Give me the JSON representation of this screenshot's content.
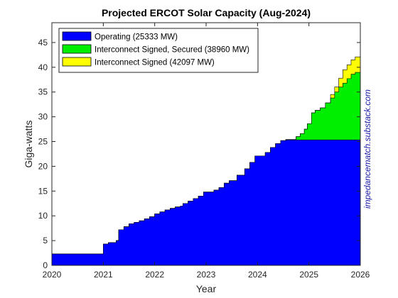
{
  "chart_data": {
    "type": "area",
    "title": "Projected ERCOT Solar Capacity (Aug-2024)",
    "xlabel": "Year",
    "ylabel": "Giga-watts",
    "xlim": [
      2020,
      2026
    ],
    "ylim": [
      0,
      49
    ],
    "xticks": [
      2020,
      2021,
      2022,
      2023,
      2024,
      2025,
      2026
    ],
    "yticks": [
      0,
      5,
      10,
      15,
      20,
      25,
      30,
      35,
      40,
      45
    ],
    "step": true,
    "legend_position": "top-left",
    "watermark": "impedancematch.substack.com",
    "series": [
      {
        "name": "Operating (25333 MW)",
        "color": "#0000ff",
        "values": [
          [
            2020.0,
            2.3
          ],
          [
            2021.0,
            4.3
          ],
          [
            2021.1,
            4.6
          ],
          [
            2021.25,
            5.0
          ],
          [
            2021.3,
            7.2
          ],
          [
            2021.4,
            7.8
          ],
          [
            2021.5,
            8.4
          ],
          [
            2021.6,
            8.7
          ],
          [
            2021.7,
            9.0
          ],
          [
            2021.8,
            9.4
          ],
          [
            2021.9,
            9.8
          ],
          [
            2022.0,
            10.4
          ],
          [
            2022.1,
            10.8
          ],
          [
            2022.2,
            11.2
          ],
          [
            2022.3,
            11.5
          ],
          [
            2022.4,
            11.8
          ],
          [
            2022.5,
            12.0
          ],
          [
            2022.55,
            12.5
          ],
          [
            2022.65,
            13.0
          ],
          [
            2022.75,
            13.5
          ],
          [
            2022.85,
            14.0
          ],
          [
            2022.95,
            14.8
          ],
          [
            2023.15,
            15.2
          ],
          [
            2023.25,
            15.7
          ],
          [
            2023.35,
            16.6
          ],
          [
            2023.45,
            17.1
          ],
          [
            2023.6,
            18.2
          ],
          [
            2023.75,
            19.5
          ],
          [
            2023.85,
            20.8
          ],
          [
            2023.95,
            22.1
          ],
          [
            2024.15,
            22.8
          ],
          [
            2024.25,
            23.8
          ],
          [
            2024.35,
            24.6
          ],
          [
            2024.45,
            25.2
          ],
          [
            2024.55,
            25.333
          ],
          [
            2026.0,
            25.333
          ]
        ]
      },
      {
        "name": "Interconnect Signed, Secured (38960 MW)",
        "color": "#00ee00",
        "values": [
          [
            2020.0,
            2.3
          ],
          [
            2021.0,
            4.3
          ],
          [
            2021.1,
            4.6
          ],
          [
            2021.25,
            5.0
          ],
          [
            2021.3,
            7.2
          ],
          [
            2021.4,
            7.8
          ],
          [
            2021.5,
            8.4
          ],
          [
            2021.6,
            8.7
          ],
          [
            2021.7,
            9.0
          ],
          [
            2021.8,
            9.4
          ],
          [
            2021.9,
            9.8
          ],
          [
            2022.0,
            10.4
          ],
          [
            2022.1,
            10.8
          ],
          [
            2022.2,
            11.2
          ],
          [
            2022.3,
            11.5
          ],
          [
            2022.4,
            11.8
          ],
          [
            2022.5,
            12.0
          ],
          [
            2022.55,
            12.5
          ],
          [
            2022.65,
            13.0
          ],
          [
            2022.75,
            13.5
          ],
          [
            2022.85,
            14.0
          ],
          [
            2022.95,
            14.8
          ],
          [
            2023.15,
            15.2
          ],
          [
            2023.25,
            15.7
          ],
          [
            2023.35,
            16.6
          ],
          [
            2023.45,
            17.1
          ],
          [
            2023.6,
            18.2
          ],
          [
            2023.75,
            19.5
          ],
          [
            2023.85,
            20.8
          ],
          [
            2023.95,
            22.1
          ],
          [
            2024.15,
            22.8
          ],
          [
            2024.25,
            23.8
          ],
          [
            2024.35,
            24.6
          ],
          [
            2024.45,
            25.2
          ],
          [
            2024.55,
            25.4
          ],
          [
            2024.75,
            26.0
          ],
          [
            2024.83,
            26.6
          ],
          [
            2024.91,
            27.5
          ],
          [
            2024.97,
            28.6
          ],
          [
            2025.05,
            30.8
          ],
          [
            2025.12,
            31.3
          ],
          [
            2025.22,
            31.8
          ],
          [
            2025.32,
            32.8
          ],
          [
            2025.42,
            33.8
          ],
          [
            2025.5,
            35.0
          ],
          [
            2025.58,
            36.0
          ],
          [
            2025.66,
            36.8
          ],
          [
            2025.74,
            37.7
          ],
          [
            2025.82,
            38.6
          ],
          [
            2025.9,
            38.96
          ],
          [
            2026.0,
            38.96
          ]
        ]
      },
      {
        "name": "Interconnect Signed (42097 MW)",
        "color": "#ffff00",
        "values": [
          [
            2020.0,
            2.3
          ],
          [
            2021.0,
            4.3
          ],
          [
            2021.1,
            4.6
          ],
          [
            2021.25,
            5.0
          ],
          [
            2021.3,
            7.2
          ],
          [
            2021.4,
            7.8
          ],
          [
            2021.5,
            8.4
          ],
          [
            2021.6,
            8.7
          ],
          [
            2021.7,
            9.0
          ],
          [
            2021.8,
            9.4
          ],
          [
            2021.9,
            9.8
          ],
          [
            2022.0,
            10.4
          ],
          [
            2022.1,
            10.8
          ],
          [
            2022.2,
            11.2
          ],
          [
            2022.3,
            11.5
          ],
          [
            2022.4,
            11.8
          ],
          [
            2022.5,
            12.0
          ],
          [
            2022.55,
            12.5
          ],
          [
            2022.65,
            13.0
          ],
          [
            2022.75,
            13.5
          ],
          [
            2022.85,
            14.0
          ],
          [
            2022.95,
            14.8
          ],
          [
            2023.15,
            15.2
          ],
          [
            2023.25,
            15.7
          ],
          [
            2023.35,
            16.6
          ],
          [
            2023.45,
            17.1
          ],
          [
            2023.6,
            18.2
          ],
          [
            2023.75,
            19.5
          ],
          [
            2023.85,
            20.8
          ],
          [
            2023.95,
            22.1
          ],
          [
            2024.15,
            22.8
          ],
          [
            2024.25,
            23.8
          ],
          [
            2024.35,
            24.6
          ],
          [
            2024.45,
            25.2
          ],
          [
            2024.55,
            25.4
          ],
          [
            2024.75,
            26.0
          ],
          [
            2024.83,
            26.6
          ],
          [
            2024.91,
            27.5
          ],
          [
            2024.97,
            28.6
          ],
          [
            2025.05,
            30.8
          ],
          [
            2025.12,
            31.3
          ],
          [
            2025.22,
            31.8
          ],
          [
            2025.32,
            32.8
          ],
          [
            2025.42,
            34.5
          ],
          [
            2025.5,
            36.0
          ],
          [
            2025.58,
            37.8
          ],
          [
            2025.66,
            39.5
          ],
          [
            2025.74,
            40.5
          ],
          [
            2025.82,
            41.5
          ],
          [
            2025.9,
            42.097
          ],
          [
            2026.0,
            42.097
          ]
        ]
      }
    ]
  }
}
